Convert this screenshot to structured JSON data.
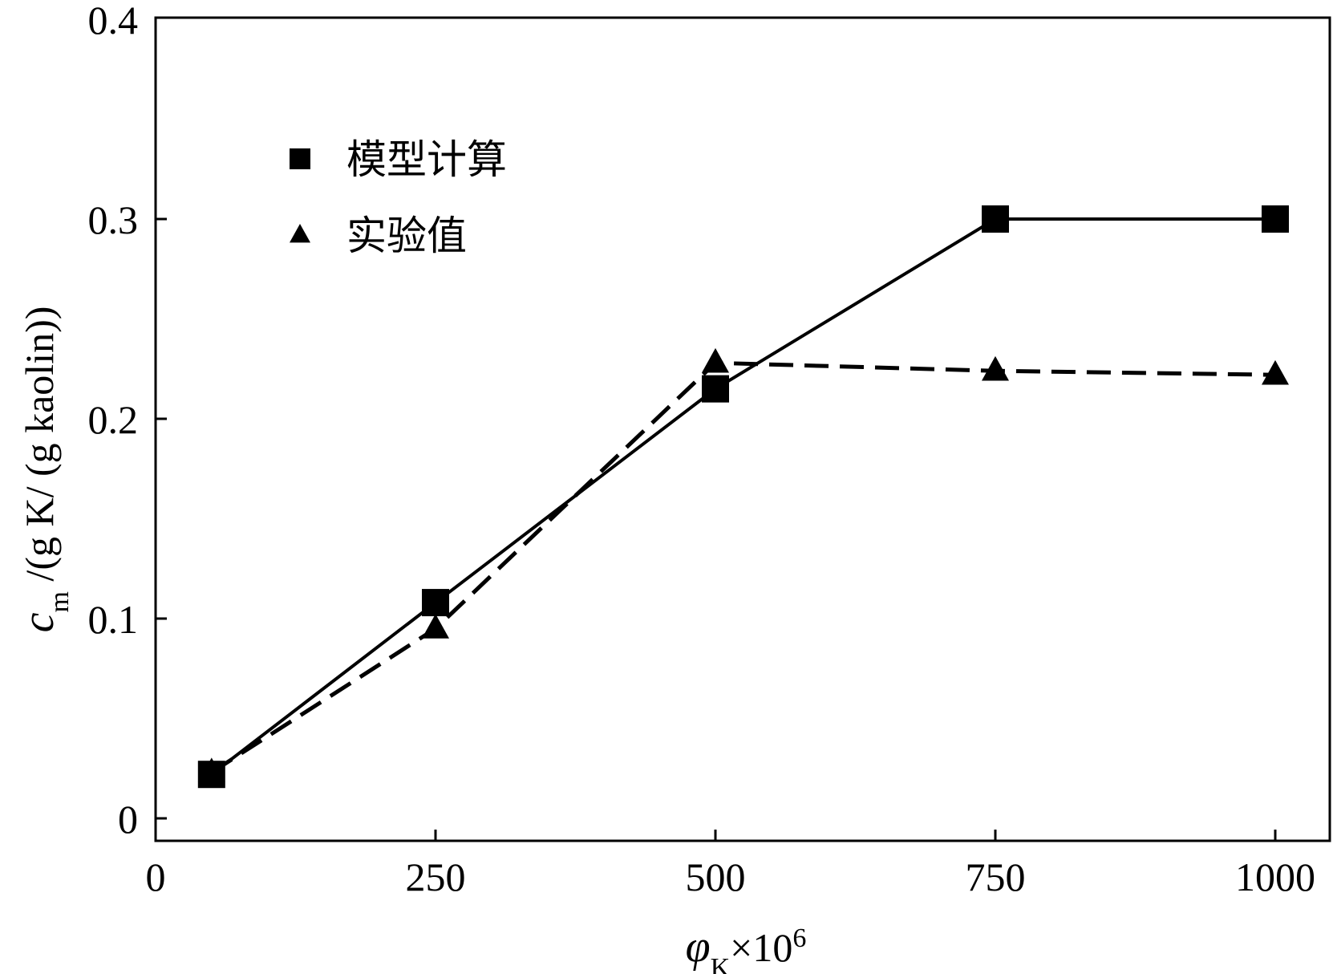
{
  "chart_data": {
    "type": "line",
    "xlabel": {
      "symbol": "φ",
      "sub": "K",
      "rest": "×10",
      "sup": "6"
    },
    "ylabel": {
      "symbol": "c",
      "sub": "m",
      "rest": " /(g K/ (g kaolin))"
    },
    "xlim": [
      0,
      1050
    ],
    "ylim": [
      -0.01,
      0.4
    ],
    "x_ticks": [
      0,
      250,
      500,
      750,
      1000
    ],
    "y_ticks": [
      0,
      0.1,
      0.2,
      0.3,
      0.4
    ],
    "x_tick_labels": [
      "0",
      "250",
      "500",
      "750",
      "1000"
    ],
    "y_tick_labels": [
      "0",
      "0.1",
      "0.2",
      "0.3",
      "0.4"
    ],
    "legend_position": "top-left",
    "series": [
      {
        "name": "模型计算",
        "marker": "square",
        "line": "solid",
        "x": [
          50,
          250,
          500,
          750,
          1000
        ],
        "y": [
          0.022,
          0.108,
          0.215,
          0.3,
          0.3
        ]
      },
      {
        "name": "实验值",
        "marker": "triangle",
        "line": "dashed",
        "x": [
          50,
          250,
          500,
          750,
          1000
        ],
        "y": [
          0.023,
          0.095,
          0.228,
          0.224,
          0.222
        ]
      }
    ]
  }
}
